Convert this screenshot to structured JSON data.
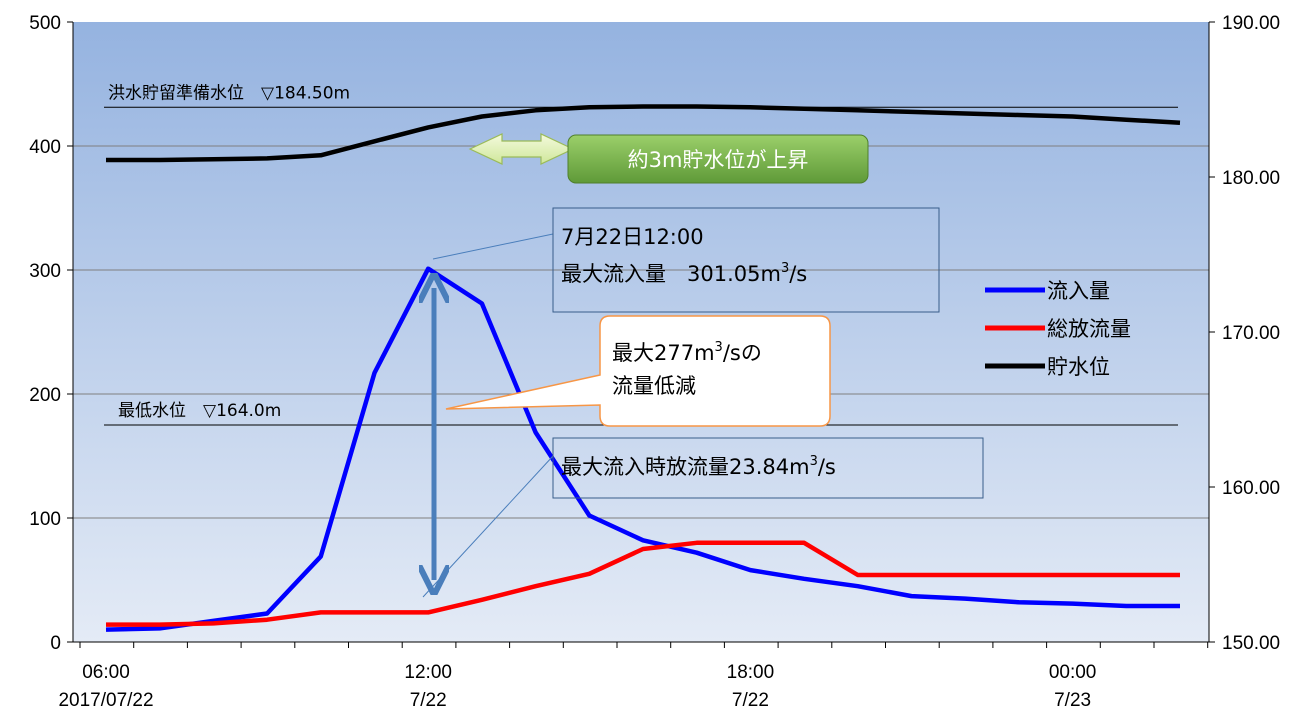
{
  "chart_data": {
    "type": "line",
    "x": [
      "06:00",
      "07:00",
      "08:00",
      "09:00",
      "10:00",
      "11:00",
      "12:00",
      "13:00",
      "14:00",
      "15:00",
      "16:00",
      "17:00",
      "18:00",
      "19:00",
      "20:00",
      "21:00",
      "22:00",
      "23:00",
      "00:00",
      "01:00",
      "02:00"
    ],
    "series": [
      {
        "name": "流入量",
        "axis": "left",
        "color": "#0000ff",
        "values": [
          10,
          11,
          17,
          23,
          69,
          217,
          301.05,
          273,
          169,
          102,
          82,
          72,
          58,
          51,
          45,
          37,
          35,
          32,
          31,
          29,
          29
        ]
      },
      {
        "name": "総放流量",
        "axis": "left",
        "color": "#ff0000",
        "values": [
          14,
          14,
          15,
          18,
          23.84,
          23.84,
          23.84,
          34,
          45,
          55,
          75,
          80,
          80,
          80,
          54,
          54,
          54,
          54,
          54,
          54,
          54
        ]
      },
      {
        "name": "貯水位",
        "axis": "right",
        "color": "#000000",
        "values": [
          181.1,
          181.1,
          181.15,
          181.2,
          181.4,
          182.3,
          183.2,
          183.9,
          184.3,
          184.5,
          184.55,
          184.55,
          184.5,
          184.4,
          184.3,
          184.2,
          184.1,
          184.0,
          183.9,
          183.7,
          183.5
        ]
      }
    ],
    "y_left": {
      "ylim": [
        0,
        500
      ],
      "ticks": [
        "0",
        "100",
        "200",
        "300",
        "400",
        "500"
      ]
    },
    "y_right": {
      "ylim": [
        150,
        190
      ],
      "ticks": [
        "150.00",
        "160.00",
        "170.00",
        "180.00",
        "190.00"
      ]
    },
    "x_tick_labels": [
      {
        "time": "06:00",
        "date": "2017/07/22"
      },
      {
        "time": "12:00",
        "date": "7/22"
      },
      {
        "time": "18:00",
        "date": "7/22"
      },
      {
        "time": "00:00",
        "date": "7/23"
      }
    ],
    "reference_lines": [
      {
        "label": "洪水貯留準備水位　▽184.50m",
        "value": 184.5,
        "axis": "right"
      },
      {
        "label": "最低水位　▽164.0m",
        "value": 164.0,
        "axis": "right"
      }
    ],
    "legend": {
      "placement": "right",
      "entries": [
        "流入量",
        "総放流量",
        "貯水位"
      ]
    },
    "annotations": {
      "water_rise": "約3m貯水位が上昇",
      "peak_line1": "7月22日12:00",
      "peak_line2_prefix": "最大流入量　301.05m",
      "peak_line2_sup": "3",
      "peak_line2_suffix": "/s",
      "reduction_line1_prefix": "最大277m",
      "reduction_line1_sup": "3",
      "reduction_line1_suffix": "/sの",
      "reduction_line2": "流量低減",
      "discharge_prefix": "最大流入時放流量23.84m",
      "discharge_sup": "3",
      "discharge_suffix": "/s"
    },
    "grid": true,
    "background_gradient": [
      "#95b3e0",
      "#e4ebf6"
    ]
  }
}
